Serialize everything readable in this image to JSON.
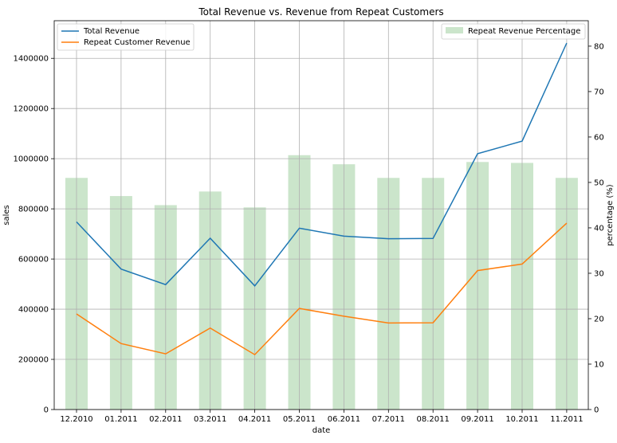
{
  "chart_data": {
    "type": "bar",
    "title": "Total Revenue vs. Revenue from Repeat Customers",
    "xlabel": "date",
    "ylabel": "sales",
    "y2label": "percentage (%)",
    "categories": [
      "12.2010",
      "01.2011",
      "02.2011",
      "03.2011",
      "04.2011",
      "05.2011",
      "06.2011",
      "07.2011",
      "08.2011",
      "09.2011",
      "10.2011",
      "11.2011"
    ],
    "ylim": [
      0,
      1550000
    ],
    "y2lim": [
      0,
      85.6
    ],
    "yticks": [
      0,
      200000,
      400000,
      600000,
      800000,
      1000000,
      1200000,
      1400000
    ],
    "y2ticks": [
      0,
      10,
      20,
      30,
      40,
      50,
      60,
      70,
      80
    ],
    "grid": true,
    "line_series": [
      {
        "name": "Total Revenue",
        "color": "#1f77b4",
        "values": [
          748000,
          560000,
          498000,
          683000,
          493000,
          723000,
          691000,
          681000,
          682000,
          1020000,
          1070000,
          1461000
        ]
      },
      {
        "name": "Repeat Customer Revenue",
        "color": "#ff7f0e",
        "values": [
          381000,
          263000,
          222000,
          325000,
          219000,
          403000,
          372000,
          345000,
          346000,
          554000,
          580000,
          743000
        ]
      }
    ],
    "bar_series": {
      "name": "Repeat Revenue Percentage",
      "color": "#a9d3a9",
      "axis": "right",
      "values": [
        51,
        47,
        45,
        48,
        44.5,
        56,
        54,
        51,
        51,
        54.5,
        54.3,
        51
      ]
    },
    "legend_left": "top-left",
    "legend_right": "top-right"
  }
}
